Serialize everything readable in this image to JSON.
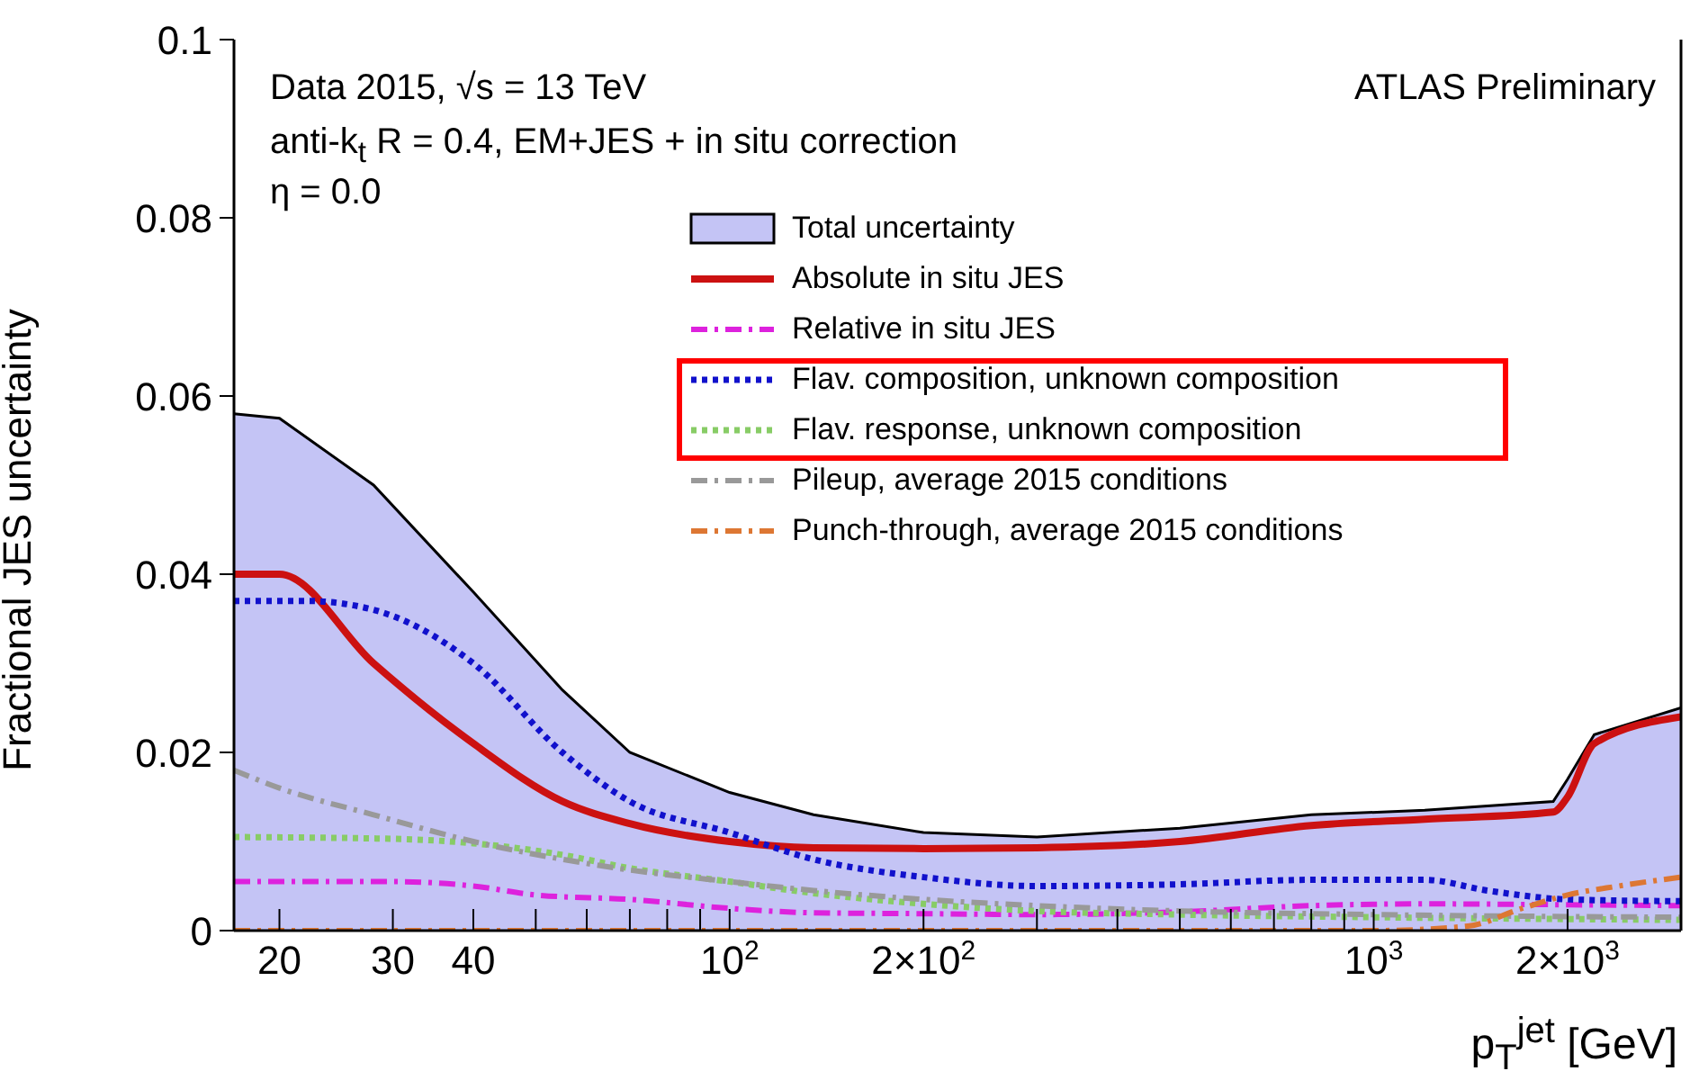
{
  "chart_data": {
    "type": "line",
    "xlabel": "p$_{T}$$^{jet}$ [GeV]",
    "ylabel": "Fractional JES uncertainty",
    "log": "x",
    "xlim": [
      17,
      3000
    ],
    "ylim": [
      0,
      0.1
    ],
    "xticks": [
      {
        "value": 20,
        "label": "20"
      },
      {
        "value": 30,
        "label": "30"
      },
      {
        "value": 40,
        "label": "40"
      },
      {
        "value": 50,
        "label": null
      },
      {
        "value": 60,
        "label": null
      },
      {
        "value": 70,
        "label": null
      },
      {
        "value": 80,
        "label": null
      },
      {
        "value": 90,
        "label": null
      },
      {
        "value": 100,
        "label": "10$^{2}$"
      },
      {
        "value": 200,
        "label": "2×10$^{2}$"
      },
      {
        "value": 300,
        "label": null
      },
      {
        "value": 400,
        "label": null
      },
      {
        "value": 500,
        "label": null
      },
      {
        "value": 600,
        "label": null
      },
      {
        "value": 700,
        "label": null
      },
      {
        "value": 800,
        "label": null
      },
      {
        "value": 900,
        "label": null
      },
      {
        "value": 1000,
        "label": "10$^{3}$"
      },
      {
        "value": 2000,
        "label": "2×10$^{3}$"
      },
      {
        "value": 3000,
        "label": null
      }
    ],
    "yticks": [
      0,
      0.02,
      0.04,
      0.06,
      0.08,
      0.1
    ],
    "grid": false,
    "legend": "top",
    "marker": "none",
    "annotations": [
      "Data 2015, √s = 13 TeV",
      "anti-k$_{t}$ R = 0.4, EM+JES + in situ correction",
      "η = 0.0",
      "ATLAS Preliminary"
    ],
    "series": [
      {
        "name": "Total uncertainty",
        "type": "area",
        "color": "#c4c4f5",
        "x": [
          17,
          20,
          28,
          40,
          55,
          70,
          100,
          135,
          200,
          300,
          500,
          800,
          1200,
          1900,
          2000,
          2200,
          3000
        ],
        "values": [
          0.058,
          0.0575,
          0.05,
          0.038,
          0.027,
          0.02,
          0.0155,
          0.013,
          0.011,
          0.0105,
          0.0115,
          0.013,
          0.0135,
          0.0145,
          0.017,
          0.022,
          0.025
        ]
      },
      {
        "name": "Absolute in situ JES",
        "color": "#cc1111",
        "line_style": "solid",
        "x": [
          17,
          20,
          28,
          40,
          55,
          70,
          100,
          135,
          200,
          300,
          500,
          800,
          1200,
          1900,
          2000,
          2200,
          3000
        ],
        "values": [
          0.04,
          0.04,
          0.03,
          0.021,
          0.0145,
          0.012,
          0.01,
          0.0093,
          0.0092,
          0.0093,
          0.01,
          0.0118,
          0.0125,
          0.0133,
          0.015,
          0.021,
          0.024
        ]
      },
      {
        "name": "Relative in situ JES",
        "color": "#dd22dd",
        "line_style": "dashed",
        "x": [
          17,
          30,
          40,
          50,
          70,
          100,
          135,
          200,
          300,
          500,
          800,
          1200,
          2000,
          3000
        ],
        "values": [
          0.0055,
          0.0055,
          0.005,
          0.004,
          0.0035,
          0.0025,
          0.002,
          0.0019,
          0.0018,
          0.0021,
          0.0028,
          0.003,
          0.0029,
          0.0028
        ]
      },
      {
        "name": "Flav. composition, unknown composition",
        "color": "#1111cc",
        "line_style": "dotted",
        "x": [
          17,
          22,
          28,
          40,
          55,
          70,
          100,
          135,
          200,
          300,
          500,
          800,
          1200,
          1500,
          2000,
          3000
        ],
        "values": [
          0.037,
          0.037,
          0.036,
          0.03,
          0.02,
          0.0145,
          0.011,
          0.008,
          0.006,
          0.005,
          0.0052,
          0.0057,
          0.0057,
          0.0045,
          0.0035,
          0.0033
        ]
      },
      {
        "name": "Flav. response, unknown composition",
        "color": "#88cc66",
        "line_style": "dotted",
        "x": [
          17,
          30,
          40,
          55,
          70,
          100,
          135,
          200,
          300,
          500,
          1000,
          3000
        ],
        "values": [
          0.0105,
          0.0103,
          0.0098,
          0.0085,
          0.007,
          0.0055,
          0.0042,
          0.003,
          0.0022,
          0.0018,
          0.0015,
          0.0012
        ]
      },
      {
        "name": "Pileup, average 2015 conditions",
        "color": "#999999",
        "line_style": "dashed",
        "x": [
          17,
          20,
          28,
          40,
          55,
          70,
          100,
          135,
          200,
          300,
          500,
          1000,
          3000
        ],
        "values": [
          0.018,
          0.016,
          0.013,
          0.01,
          0.008,
          0.0068,
          0.0055,
          0.0045,
          0.0035,
          0.0028,
          0.0022,
          0.0018,
          0.0015
        ]
      },
      {
        "name": "Punch-through, average 2015 conditions",
        "color": "#dd7733",
        "line_style": "dashed",
        "x": [
          17,
          1000,
          1400,
          1700,
          2000,
          2400,
          3000
        ],
        "values": [
          0,
          0,
          0.0005,
          0.0025,
          0.004,
          0.005,
          0.006
        ]
      }
    ]
  }
}
